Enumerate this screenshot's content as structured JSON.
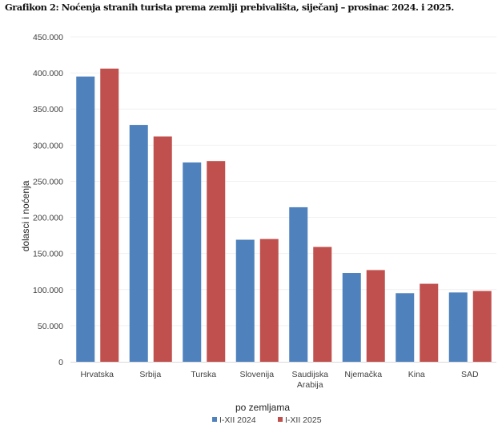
{
  "title": "Grafikon 2: Noćenja stranih turista prema zemlji prebivališta, siječanj – prosinac 2024. i 2025.",
  "chart_data": {
    "type": "bar",
    "title": "Grafikon 2: Noćenja stranih turista prema zemlji prebivališta, siječanj – prosinac 2024. i 2025.",
    "xlabel": "po zemljama",
    "ylabel": "dolasci i noćenja",
    "ylim": [
      0,
      450000
    ],
    "yticks": [
      0,
      50000,
      100000,
      150000,
      200000,
      250000,
      300000,
      350000,
      400000,
      450000
    ],
    "ytick_labels": [
      "0",
      "50.000",
      "100.000",
      "150.000",
      "200.000",
      "250.000",
      "300.000",
      "350.000",
      "400.000",
      "450.000"
    ],
    "grid": true,
    "legend_position": "bottom",
    "categories": [
      [
        "Hrvatska"
      ],
      [
        "Srbija"
      ],
      [
        "Turska"
      ],
      [
        "Slovenija"
      ],
      [
        "Saudijska",
        "Arabija"
      ],
      [
        "Njemačka"
      ],
      [
        "Kina"
      ],
      [
        "SAD"
      ]
    ],
    "series": [
      {
        "name": "I-XII 2024",
        "color": "#4F81BD",
        "values": [
          395000,
          328000,
          276000,
          169000,
          214000,
          123000,
          95000,
          96000
        ]
      },
      {
        "name": "I-XII 2025",
        "color": "#C0504D",
        "values": [
          406000,
          312000,
          278000,
          170000,
          159000,
          127000,
          108000,
          98000
        ]
      }
    ]
  }
}
